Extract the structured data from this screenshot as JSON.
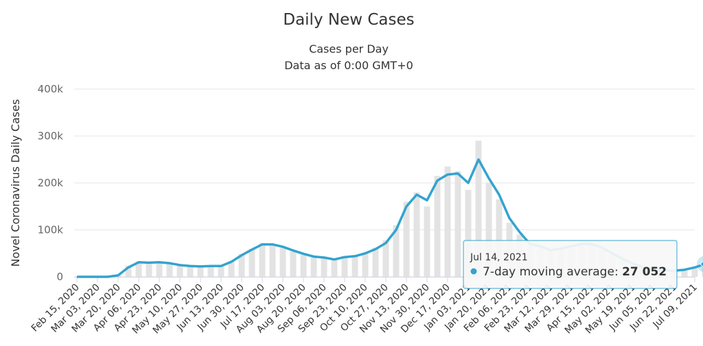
{
  "chart_data": {
    "type": "bar-line",
    "title": "Daily New Cases",
    "subtitle": [
      "Cases per Day",
      "Data as of 0:00 GMT+0"
    ],
    "y_label": "Novel Coronavirus Daily Cases",
    "categories": [
      "Feb 15, 2020",
      null,
      "Mar 03, 2020",
      null,
      "Mar 20, 2020",
      null,
      "Apr 06, 2020",
      null,
      "Apr 23, 2020",
      null,
      "May 10, 2020",
      null,
      "May 27, 2020",
      null,
      "Jun 13, 2020",
      null,
      "Jun 30, 2020",
      null,
      "Jul 17, 2020",
      null,
      "Aug 03, 2020",
      null,
      "Aug 20, 2020",
      null,
      "Sep 06, 2020",
      null,
      "Sep 23, 2020",
      null,
      "Oct 10, 2020",
      null,
      "Oct 27, 2020",
      null,
      "Nov 13, 2020",
      null,
      "Nov 30, 2020",
      null,
      "Dec 17, 2020",
      null,
      "Jan 03, 2021",
      null,
      "Jan 20, 2021",
      null,
      "Feb 06, 2021",
      null,
      "Feb 23, 2021",
      null,
      "Mar 12, 2021",
      null,
      "Mar 29, 2021",
      null,
      "Apr 15, 2021",
      null,
      "May 02, 2021",
      null,
      "May 19, 2021",
      null,
      "Jun 05, 2021",
      null,
      "Jun 22, 2021",
      null,
      "Jul 09, 2021",
      null
    ],
    "series": [
      {
        "type": "bar",
        "color": "#e3e3e3",
        "values": [
          0,
          0,
          0,
          0,
          4000,
          24000,
          33000,
          29000,
          31000,
          28000,
          24000,
          22000,
          21000,
          24000,
          24000,
          34000,
          49000,
          60000,
          72000,
          67000,
          62000,
          54000,
          47000,
          41000,
          40000,
          36000,
          44000,
          45000,
          52000,
          62000,
          78000,
          110000,
          160000,
          180000,
          150000,
          215000,
          235000,
          225000,
          185000,
          290000,
          200000,
          165000,
          115000,
          90000,
          66000,
          62000,
          55000,
          62000,
          68000,
          72000,
          68000,
          58000,
          47000,
          35000,
          26000,
          18000,
          14000,
          12000,
          11000,
          14000,
          20000,
          30000
        ]
      },
      {
        "type": "line",
        "name": "7-day moving average",
        "color": "#33a3cf",
        "values": [
          0,
          0,
          0,
          0,
          3000,
          20000,
          31000,
          30000,
          31000,
          29000,
          25000,
          23000,
          22000,
          23000,
          23000,
          32000,
          46000,
          58000,
          69000,
          69000,
          64000,
          56000,
          49000,
          43000,
          41000,
          37000,
          42000,
          44000,
          50000,
          59000,
          72000,
          100000,
          150000,
          175000,
          163000,
          205000,
          218000,
          220000,
          200000,
          250000,
          210000,
          175000,
          125000,
          95000,
          70000,
          65000,
          57000,
          60000,
          65000,
          70000,
          70000,
          62000,
          50000,
          38000,
          28000,
          20000,
          15000,
          13000,
          13000,
          15000,
          20000,
          27052
        ]
      }
    ],
    "ylim": [
      0,
      400000
    ],
    "yticks": [
      {
        "value": 0,
        "label": "0"
      },
      {
        "value": 100000,
        "label": "100k"
      },
      {
        "value": 200000,
        "label": "200k"
      },
      {
        "value": 300000,
        "label": "300k"
      },
      {
        "value": 400000,
        "label": "400k"
      }
    ],
    "grid": true,
    "tooltip": {
      "date": "Jul 14, 2021",
      "value": 27052,
      "label": "27 052"
    }
  }
}
